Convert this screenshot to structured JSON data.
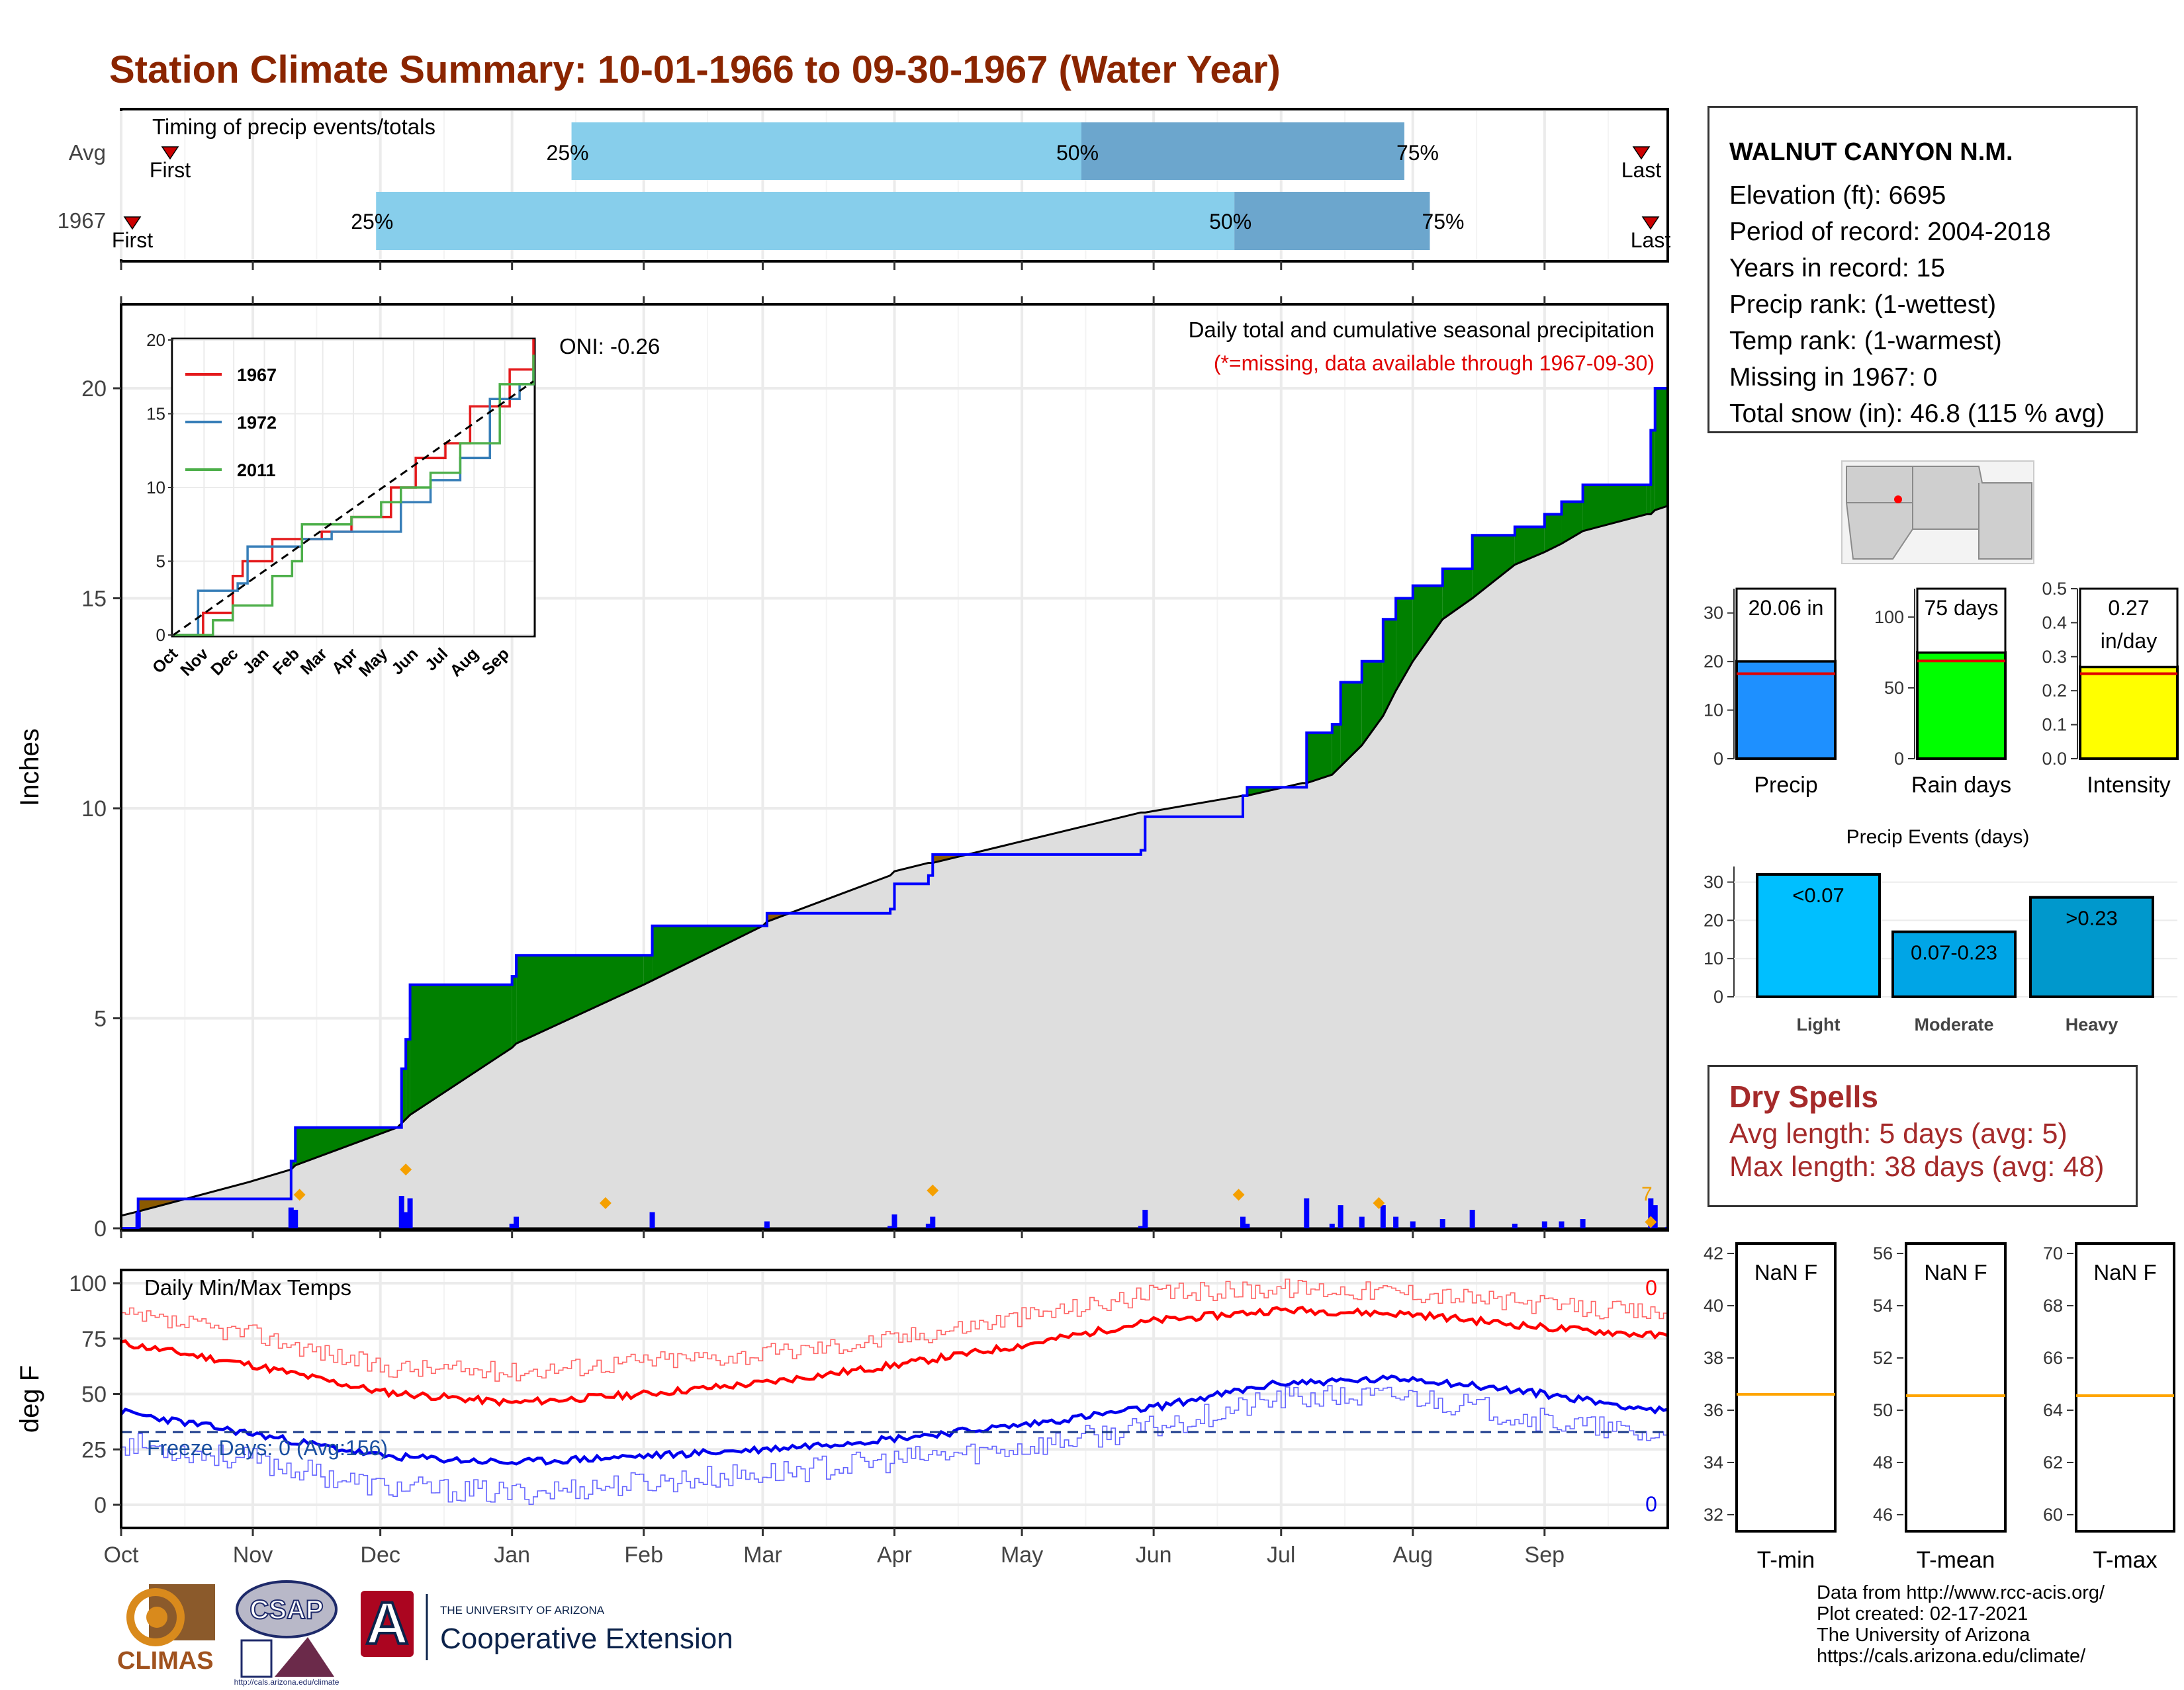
{
  "title": "Station Climate Summary: 10-01-1966 to 09-30-1967 (Water Year)",
  "colors": {
    "title": "#8B2500",
    "precip_above": "#008000",
    "precip_below": "#8B5A00",
    "normal_fill": "#DEDEDE",
    "line_blue": "#0000FF",
    "q_light": "#87CEEB",
    "q_dark": "#6CA6CD",
    "tmax": "#FF0000",
    "tmin": "#0000FF"
  },
  "timing_panel": {
    "label": "Timing of precip events/totals",
    "rows": [
      {
        "name": "Avg",
        "first_label": "First",
        "last_label": "Last",
        "q25": "25%",
        "q50": "50%",
        "q75": "75%"
      },
      {
        "name": "1967",
        "first_label": "First",
        "last_label": "Last",
        "q25": "25%",
        "q50": "50%",
        "q75": "75%"
      }
    ]
  },
  "station": {
    "name": "WALNUT CANYON N.M.",
    "elevation": "Elevation (ft): 6695",
    "period": "Period of record: 2004-2018",
    "years": "Years in record: 15",
    "precip_rank": "Precip rank:  (1-wettest)",
    "temp_rank": "Temp rank:  (1-warmest)",
    "missing": "Missing in 1967: 0",
    "snow": "Total snow (in): 46.8 (115 % avg)"
  },
  "dry_spells": {
    "title": "Dry Spells",
    "avg": "Avg length: 5 days (avg: 5)",
    "max": "Max length: 38 days (avg: 48)"
  },
  "precip_chart": {
    "ylabel": "Inches",
    "oni": "ONI: -0.26",
    "subtitle": "Daily total and cumulative seasonal precipitation",
    "missing_note": "(*=missing, data available through 1967-09-30)",
    "yticks": [
      "0",
      "5",
      "10",
      "15",
      "20"
    ]
  },
  "temp_chart": {
    "ylabel": "deg F",
    "label": "Daily Min/Max Temps",
    "freeze": "Freeze Days: 0 (Avg:156)",
    "count_hot": "0",
    "count_cold": "0",
    "yticks": [
      "0",
      "25",
      "50",
      "75",
      "100"
    ]
  },
  "months": [
    "Oct",
    "Nov",
    "Dec",
    "Jan",
    "Feb",
    "Mar",
    "Apr",
    "May",
    "Jun",
    "Jul",
    "Aug",
    "Sep"
  ],
  "inset": {
    "legend": [
      "1967",
      "1972",
      "2011"
    ],
    "months": [
      "Oct",
      "Nov",
      "Dec",
      "Jan",
      "Feb",
      "Mar",
      "Apr",
      "May",
      "Jun",
      "Jul",
      "Aug",
      "Sep"
    ],
    "yticks": [
      "0",
      "5",
      "10",
      "15",
      "20"
    ]
  },
  "bars": {
    "precip": {
      "label": "Precip",
      "value_text": "20.06 in",
      "yticks": [
        "0",
        "10",
        "20",
        "30"
      ]
    },
    "rain_days": {
      "label": "Rain days",
      "value_text": "75 days",
      "yticks": [
        "0",
        "50",
        "100"
      ]
    },
    "intensity": {
      "label": "Intensity",
      "value_text": "0.27\nin/day",
      "yticks": [
        "0.0",
        "0.1",
        "0.2",
        "0.3",
        "0.4",
        "0.5"
      ]
    }
  },
  "events": {
    "title": "Precip Events (days)",
    "categories": [
      "Light",
      "Moderate",
      "Heavy"
    ],
    "labels": [
      "<0.07",
      "0.07-0.23",
      ">0.23"
    ],
    "yticks": [
      "0",
      "10",
      "20",
      "30"
    ]
  },
  "temp_boxes": [
    {
      "label": "T-min",
      "value": "NaN F",
      "yticks": [
        "32",
        "34",
        "36",
        "38",
        "40",
        "42"
      ]
    },
    {
      "label": "T-mean",
      "value": "NaN F",
      "yticks": [
        "46",
        "48",
        "50",
        "52",
        "54",
        "56"
      ]
    },
    {
      "label": "T-max",
      "value": "NaN F",
      "yticks": [
        "60",
        "62",
        "64",
        "66",
        "68",
        "70"
      ]
    }
  ],
  "credits": [
    "Data from http://www.rcc-acis.org/",
    "Plot created: 02-17-2021",
    "The University of Arizona",
    "https://cals.arizona.edu/climate/"
  ],
  "logos": {
    "climas": "CLIMAS",
    "csap": "CSAP",
    "csap_url": "http://cals.arizona.edu/climate",
    "ua_top": "THE UNIVERSITY OF ARIZONA",
    "ua_bottom": "Cooperative Extension"
  },
  "chart_data": [
    {
      "type": "bar",
      "title": "Timing of precip events/totals",
      "categories": [
        "Avg",
        "1967"
      ],
      "series": [
        {
          "name": "25%",
          "values": [
            "1967-01-15",
            "1966-11-30"
          ]
        },
        {
          "name": "50%",
          "values": [
            "1967-05-15",
            "1967-06-20"
          ]
        },
        {
          "name": "75%",
          "values": [
            "1967-07-30",
            "1967-08-05"
          ]
        }
      ]
    },
    {
      "type": "area",
      "title": "Daily total and cumulative seasonal precipitation",
      "ylabel": "Inches",
      "ylim": [
        0,
        22
      ],
      "x": [
        "1966-10-01",
        "1966-10-05",
        "1966-10-31",
        "1966-11-10",
        "1966-11-11",
        "1966-12-05",
        "1966-12-06",
        "1966-12-07",
        "1966-12-08",
        "1967-01-01",
        "1967-01-02",
        "1967-02-01",
        "1967-02-03",
        "1967-03-01",
        "1967-03-02",
        "1967-03-31",
        "1967-04-01",
        "1967-04-09",
        "1967-04-10",
        "1967-05-29",
        "1967-05-30",
        "1967-06-22",
        "1967-06-23",
        "1967-07-06",
        "1967-07-07",
        "1967-07-13",
        "1967-07-15",
        "1967-07-20",
        "1967-07-25",
        "1967-07-28",
        "1967-08-01",
        "1967-08-08",
        "1967-08-15",
        "1967-08-25",
        "1967-09-01",
        "1967-09-05",
        "1967-09-10",
        "1967-09-25",
        "1967-09-26",
        "1967-09-27",
        "1967-09-30"
      ],
      "series": [
        {
          "name": "1967",
          "values": [
            0.0,
            0.7,
            0.7,
            1.6,
            2.4,
            2.4,
            3.8,
            4.5,
            5.8,
            6.0,
            6.5,
            6.5,
            7.2,
            7.2,
            7.5,
            7.6,
            8.2,
            8.4,
            8.9,
            9.0,
            9.8,
            10.3,
            10.5,
            10.5,
            11.8,
            12.0,
            13.0,
            13.5,
            14.5,
            15.0,
            15.3,
            15.7,
            16.5,
            16.7,
            17.0,
            17.3,
            17.7,
            17.7,
            19.0,
            20.0,
            20.06
          ]
        },
        {
          "name": "Normal",
          "values": [
            0.3,
            0.4,
            1.1,
            1.4,
            1.5,
            2.4,
            2.5,
            2.6,
            2.7,
            4.3,
            4.4,
            5.8,
            5.9,
            7.2,
            7.3,
            8.4,
            8.5,
            8.7,
            8.7,
            9.9,
            9.9,
            10.3,
            10.3,
            10.6,
            10.6,
            10.8,
            11.0,
            11.5,
            12.2,
            12.8,
            13.5,
            14.5,
            15.0,
            15.8,
            16.1,
            16.3,
            16.6,
            17.0,
            17.0,
            17.1,
            17.2
          ]
        }
      ]
    },
    {
      "type": "line",
      "title": "Daily Min/Max Temps",
      "ylabel": "deg F",
      "x": [
        "Oct",
        "Nov",
        "Dec",
        "Jan",
        "Feb",
        "Mar",
        "Apr",
        "May",
        "Jun",
        "Jul",
        "Aug",
        "Sep",
        "Sep-end"
      ],
      "series": [
        {
          "name": "Normal max",
          "values": [
            73,
            63,
            51,
            46,
            50,
            55,
            63,
            72,
            83,
            88,
            86,
            80,
            76
          ]
        },
        {
          "name": "Normal min",
          "values": [
            42,
            32,
            22,
            19,
            22,
            25,
            30,
            36,
            44,
            55,
            57,
            50,
            42
          ]
        },
        {
          "name": "Record max",
          "values": [
            85,
            77,
            62,
            60,
            65,
            68,
            75,
            85,
            95,
            98,
            96,
            90,
            86
          ]
        },
        {
          "name": "Record min",
          "values": [
            28,
            20,
            8,
            5,
            10,
            14,
            20,
            26,
            35,
            48,
            49,
            38,
            30
          ]
        }
      ]
    },
    {
      "type": "bar",
      "title": "Precip Events (days)",
      "categories": [
        "Light",
        "Moderate",
        "Heavy"
      ],
      "values": [
        32,
        17,
        26
      ],
      "ylim": [
        0,
        32
      ]
    },
    {
      "type": "bar",
      "categories": [
        "Precip",
        "Rain days",
        "Intensity"
      ],
      "values": [
        20.06,
        75,
        0.27
      ],
      "series": [
        {
          "name": "avg",
          "values": [
            17.5,
            69,
            0.25
          ]
        }
      ]
    }
  ]
}
